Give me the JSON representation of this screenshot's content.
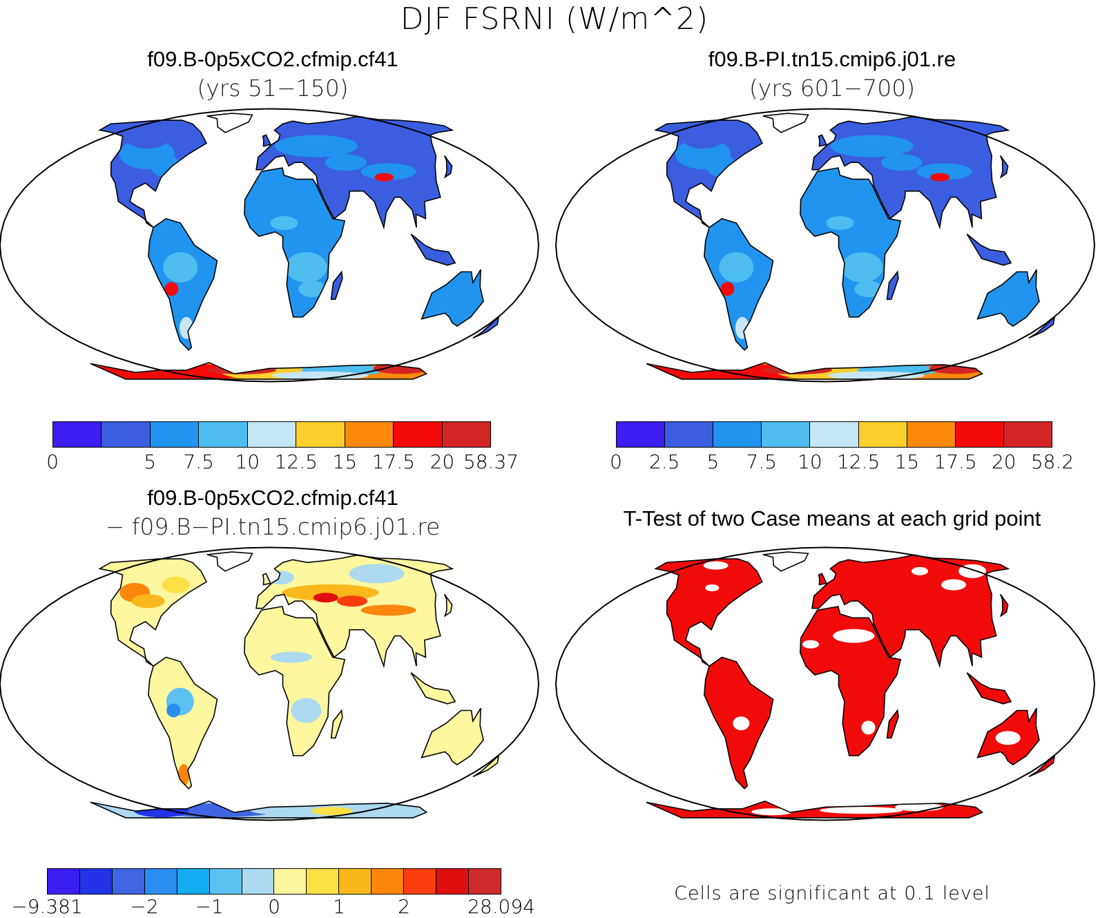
{
  "figure": {
    "title": "DJF FSRNI (W/m^2)"
  },
  "panels": [
    {
      "title": "f09.B-0p5xCO2.cfmip.cf41",
      "subtitle": "(yrs 51−150)",
      "palette": [
        "#3d1ef2",
        "#3b5ee0",
        "#2194ef",
        "#4fbdf0",
        "#c6e6f5",
        "#fccf2e",
        "#fb8a0c",
        "#f50a0a",
        "#d42525"
      ],
      "colorbar_labels": [
        {
          "text": "0",
          "pos": 0
        },
        {
          "text": "5",
          "pos": 2
        },
        {
          "text": "7.5",
          "pos": 3
        },
        {
          "text": "10",
          "pos": 4
        },
        {
          "text": "12.5",
          "pos": 5
        },
        {
          "text": "15",
          "pos": 6
        },
        {
          "text": "17.5",
          "pos": 7
        },
        {
          "text": "20",
          "pos": 8
        },
        {
          "text": "58.37",
          "pos": 9
        }
      ]
    },
    {
      "title": "f09.B-PI.tn15.cmip6.j01.re",
      "subtitle": "(yrs 601−700)",
      "palette": [
        "#3d1ef2",
        "#3b5ee0",
        "#2194ef",
        "#4fbdf0",
        "#c6e6f5",
        "#fccf2e",
        "#fb8a0c",
        "#f50a0a",
        "#d42525"
      ],
      "colorbar_labels": [
        {
          "text": "0",
          "pos": 0
        },
        {
          "text": "2.5",
          "pos": 1
        },
        {
          "text": "5",
          "pos": 2
        },
        {
          "text": "7.5",
          "pos": 3
        },
        {
          "text": "10",
          "pos": 4
        },
        {
          "text": "12.5",
          "pos": 5
        },
        {
          "text": "15",
          "pos": 6
        },
        {
          "text": "17.5",
          "pos": 7
        },
        {
          "text": "20",
          "pos": 8
        },
        {
          "text": "58.2",
          "pos": 9
        }
      ]
    },
    {
      "title": "f09.B-0p5xCO2.cfmip.cf41",
      "subtitle": "− f09.B−PI.tn15.cmip6.j01.re",
      "palette": [
        "#3a1ef0",
        "#2233e8",
        "#3f66e0",
        "#2a8ef0",
        "#14acf0",
        "#5cc1f0",
        "#acd9ef",
        "#fdf7a0",
        "#fce046",
        "#fbb81c",
        "#fb860c",
        "#fb3d0f",
        "#e00f0f",
        "#cf2b2b"
      ],
      "colorbar_labels": [
        {
          "text": "−9.381",
          "pos": 0
        },
        {
          "text": "−2",
          "pos": 3
        },
        {
          "text": "−1",
          "pos": 5
        },
        {
          "text": "0",
          "pos": 7
        },
        {
          "text": "1",
          "pos": 9
        },
        {
          "text": "2",
          "pos": 11
        },
        {
          "text": "28.094",
          "pos": 14
        }
      ]
    },
    {
      "title": "T-Test of two Case means at each grid point",
      "subtitle": "",
      "note": "Cells are significant at 0.1 level"
    }
  ]
}
